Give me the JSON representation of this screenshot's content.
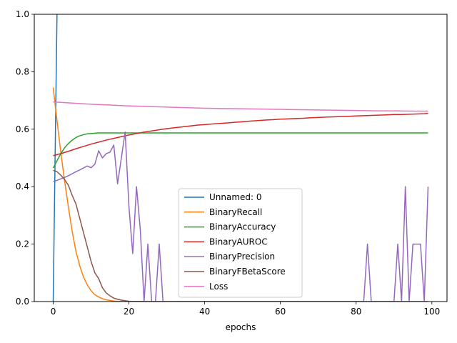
{
  "chart_data": {
    "type": "line",
    "xlabel": "epochs",
    "ylabel": "",
    "xlim": [
      -5,
      104
    ],
    "ylim": [
      0,
      1
    ],
    "xticks": [
      0,
      20,
      40,
      60,
      80,
      100
    ],
    "yticks": [
      0.0,
      0.2,
      0.4,
      0.6,
      0.8,
      1.0
    ],
    "xtick_labels": [
      "0",
      "20",
      "40",
      "60",
      "80",
      "100"
    ],
    "ytick_labels": [
      "0.0",
      "0.2",
      "0.4",
      "0.6",
      "0.8",
      "1.0"
    ],
    "grid": false,
    "legend_position": "lower-center",
    "series": [
      {
        "name": "Unnamed: 0",
        "color": "#1f77b4",
        "x": [
          0,
          1,
          2,
          3,
          4,
          5,
          6,
          7,
          8,
          9,
          10,
          11,
          12,
          13,
          14,
          15,
          16,
          17,
          18,
          19,
          20,
          21,
          22,
          23,
          24,
          25,
          26,
          27,
          28,
          29,
          30,
          31,
          32,
          33,
          34,
          35,
          36,
          37,
          38,
          39,
          40,
          41,
          42,
          43,
          44,
          45,
          46,
          47,
          48,
          49,
          50,
          51,
          52,
          53,
          54,
          55,
          56,
          57,
          58,
          59,
          60,
          61,
          62,
          63,
          64,
          65,
          66,
          67,
          68,
          69,
          70,
          71,
          72,
          73,
          74,
          75,
          76,
          77,
          78,
          79,
          80,
          81,
          82,
          83,
          84,
          85,
          86,
          87,
          88,
          89,
          90,
          91,
          92,
          93,
          94,
          95,
          96,
          97,
          98,
          99
        ],
        "y": [
          0,
          1,
          2,
          3,
          4,
          5,
          6,
          7,
          8,
          9,
          10,
          11,
          12,
          13,
          14,
          15,
          16,
          17,
          18,
          19,
          20,
          21,
          22,
          23,
          24,
          25,
          26,
          27,
          28,
          29,
          30,
          31,
          32,
          33,
          34,
          35,
          36,
          37,
          38,
          39,
          40,
          41,
          42,
          43,
          44,
          45,
          46,
          47,
          48,
          49,
          50,
          51,
          52,
          53,
          54,
          55,
          56,
          57,
          58,
          59,
          60,
          61,
          62,
          63,
          64,
          65,
          66,
          67,
          68,
          69,
          70,
          71,
          72,
          73,
          74,
          75,
          76,
          77,
          78,
          79,
          80,
          81,
          82,
          83,
          84,
          85,
          86,
          87,
          88,
          89,
          90,
          91,
          92,
          93,
          94,
          95,
          96,
          97,
          98,
          99
        ]
      },
      {
        "name": "BinaryRecall",
        "color": "#ff7f0e",
        "x": [
          0,
          1,
          2,
          3,
          4,
          5,
          6,
          7,
          8,
          9,
          10,
          11,
          12,
          13,
          14,
          15,
          16,
          17,
          18,
          19,
          20,
          30,
          40,
          50,
          60,
          70,
          80,
          90,
          99
        ],
        "y": [
          0.745,
          0.63,
          0.52,
          0.42,
          0.33,
          0.245,
          0.175,
          0.125,
          0.085,
          0.058,
          0.038,
          0.024,
          0.016,
          0.01,
          0.006,
          0.004,
          0.002,
          0.001,
          0.0005,
          0,
          0,
          0,
          0,
          0,
          0,
          0,
          0,
          0,
          0
        ]
      },
      {
        "name": "BinaryAccuracy",
        "color": "#2ca02c",
        "x": [
          0,
          1,
          2,
          3,
          4,
          5,
          6,
          7,
          8,
          9,
          10,
          11,
          12,
          13,
          14,
          15,
          16,
          17,
          18,
          19,
          20,
          30,
          40,
          50,
          60,
          70,
          80,
          90,
          99
        ],
        "y": [
          0.465,
          0.49,
          0.515,
          0.535,
          0.55,
          0.562,
          0.571,
          0.577,
          0.581,
          0.584,
          0.585,
          0.586,
          0.587,
          0.587,
          0.587,
          0.587,
          0.587,
          0.587,
          0.587,
          0.587,
          0.587,
          0.587,
          0.587,
          0.587,
          0.587,
          0.587,
          0.587,
          0.587,
          0.587
        ]
      },
      {
        "name": "BinaryAUROC",
        "color": "#d62728",
        "x": [
          0,
          2,
          4,
          6,
          8,
          10,
          12,
          14,
          16,
          18,
          20,
          22,
          24,
          26,
          28,
          30,
          32,
          34,
          36,
          38,
          40,
          42,
          44,
          46,
          48,
          50,
          52,
          54,
          56,
          58,
          60,
          62,
          64,
          66,
          68,
          70,
          72,
          74,
          76,
          78,
          80,
          82,
          84,
          86,
          88,
          90,
          92,
          94,
          96,
          98,
          99
        ],
        "y": [
          0.508,
          0.515,
          0.523,
          0.532,
          0.54,
          0.548,
          0.555,
          0.562,
          0.568,
          0.574,
          0.58,
          0.585,
          0.59,
          0.594,
          0.598,
          0.602,
          0.605,
          0.608,
          0.611,
          0.614,
          0.616,
          0.618,
          0.62,
          0.622,
          0.624,
          0.626,
          0.628,
          0.63,
          0.632,
          0.633,
          0.635,
          0.636,
          0.637,
          0.638,
          0.64,
          0.641,
          0.642,
          0.643,
          0.644,
          0.645,
          0.646,
          0.647,
          0.648,
          0.649,
          0.65,
          0.651,
          0.651,
          0.652,
          0.653,
          0.654,
          0.655
        ]
      },
      {
        "name": "BinaryPrecision",
        "color": "#9467bd",
        "x": [
          0,
          1,
          2,
          3,
          4,
          5,
          6,
          7,
          8,
          9,
          10,
          11,
          12,
          13,
          14,
          15,
          16,
          17,
          18,
          19,
          20,
          21,
          22,
          23,
          24,
          25,
          26,
          27,
          28,
          29,
          30,
          40,
          50,
          60,
          70,
          80,
          81,
          82,
          83,
          84,
          85,
          86,
          87,
          88,
          89,
          90,
          91,
          92,
          93,
          94,
          95,
          96,
          97,
          98,
          99
        ],
        "y": [
          0.418,
          0.422,
          0.427,
          0.432,
          0.438,
          0.445,
          0.452,
          0.458,
          0.465,
          0.472,
          0.466,
          0.478,
          0.525,
          0.5,
          0.515,
          0.52,
          0.545,
          0.41,
          0.5,
          0.59,
          0.33,
          0.167,
          0.4,
          0.25,
          0,
          0.2,
          0,
          0,
          0.2,
          0,
          0,
          0,
          0,
          0,
          0,
          0,
          0,
          0,
          0.2,
          0,
          0,
          0,
          0,
          0,
          0,
          0,
          0.2,
          0,
          0.4,
          0,
          0.2,
          0.2,
          0.2,
          0,
          0.4
        ]
      },
      {
        "name": "BinaryFBetaScore",
        "color": "#8c564b",
        "x": [
          0,
          1,
          2,
          3,
          4,
          5,
          6,
          7,
          8,
          9,
          10,
          11,
          12,
          13,
          14,
          15,
          16,
          17,
          18,
          19,
          20,
          30,
          40,
          50,
          60,
          70,
          80,
          90,
          99
        ],
        "y": [
          0.457,
          0.452,
          0.44,
          0.425,
          0.405,
          0.37,
          0.34,
          0.29,
          0.24,
          0.19,
          0.14,
          0.1,
          0.08,
          0.048,
          0.03,
          0.02,
          0.012,
          0.008,
          0.005,
          0.003,
          0.001,
          0,
          0,
          0,
          0,
          0,
          0,
          0,
          0
        ]
      },
      {
        "name": "Loss",
        "color": "#e377c2",
        "x": [
          0,
          5,
          10,
          15,
          20,
          25,
          30,
          35,
          40,
          45,
          50,
          55,
          60,
          65,
          70,
          75,
          80,
          85,
          90,
          95,
          99
        ],
        "y": [
          0.695,
          0.691,
          0.687,
          0.684,
          0.681,
          0.679,
          0.677,
          0.675,
          0.673,
          0.672,
          0.671,
          0.67,
          0.669,
          0.668,
          0.667,
          0.666,
          0.665,
          0.664,
          0.664,
          0.663,
          0.663
        ]
      }
    ]
  }
}
